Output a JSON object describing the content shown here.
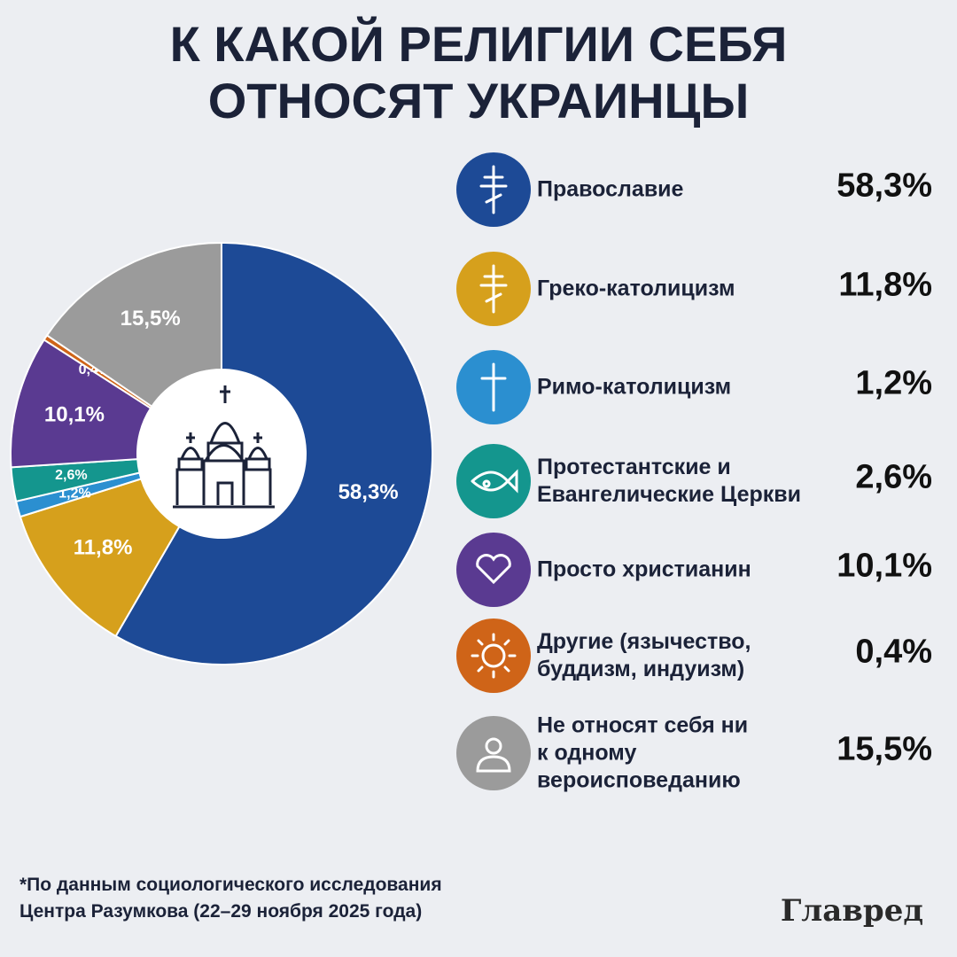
{
  "chart_data": {
    "type": "pie",
    "title": "К КАКОЙ РЕЛИГИИ СЕБЯ\nОТНОСЯТ УКРАИНЦЫ",
    "categories": [
      "Православие",
      "Греко-католицизм",
      "Римо-католицизм",
      "Протестантские и\nЕвангелические Церкви",
      "Просто христианин",
      "Другие (язычество,\nбуддизм, индуизм)",
      "Не относят себя ни\nк одному\nвероисповеданию"
    ],
    "values": [
      58.3,
      11.8,
      1.2,
      2.6,
      10.1,
      0.4,
      15.5
    ],
    "value_labels": [
      "58,3%",
      "11,8%",
      "1,2%",
      "2,6%",
      "10,1%",
      "0,4%",
      "15,5%"
    ],
    "colors": [
      "#1d4a96",
      "#d6a01c",
      "#2b8fd0",
      "#14968e",
      "#5a3a91",
      "#cf6418",
      "#9b9b9b"
    ],
    "footnote": "*По данным социологического исследования\nЦентра Разумкова (22–29 ноября 2025 года)",
    "brand": "Главред"
  }
}
